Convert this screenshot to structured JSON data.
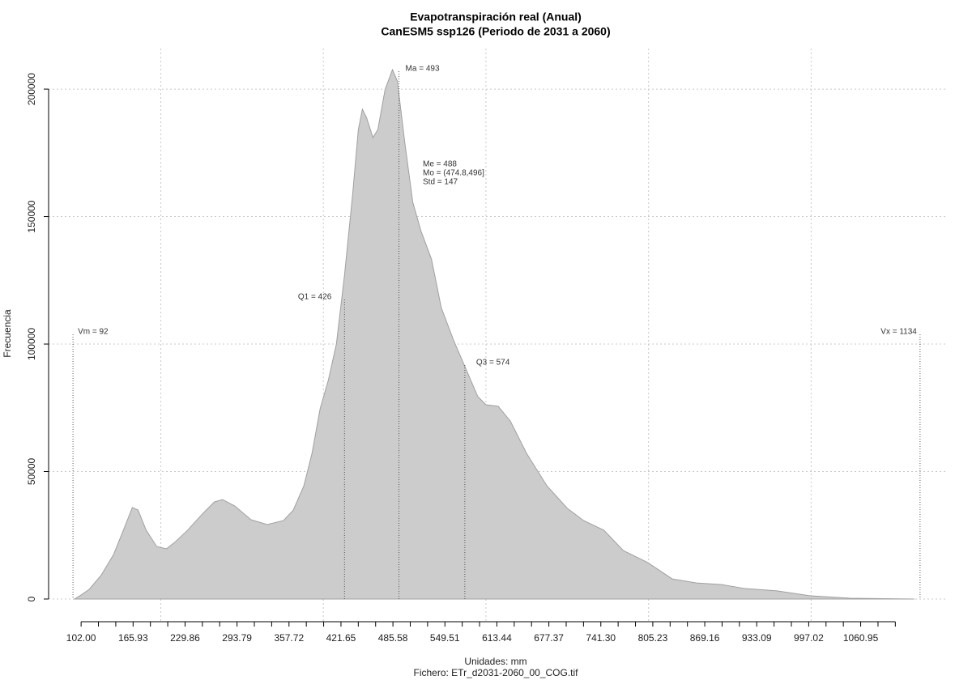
{
  "chart_data": {
    "type": "area",
    "title": "Evapotranspiración real (Anual)",
    "subtitle": "CanESM5 ssp126 (Periodo de 2031 a 2060)",
    "xlabel": "Unidades: mm",
    "footer": "Fichero: ETr_d2031-2060_00_COG.tif",
    "ylabel": "Frecuencia",
    "color": "#cccccc",
    "line_color": "#a0a0a0",
    "grid": true,
    "x": [
      94,
      102,
      112,
      127,
      142,
      154,
      165,
      172,
      182,
      195,
      207,
      217,
      233,
      251,
      266,
      276,
      291,
      311,
      331,
      351,
      363,
      376,
      386,
      396,
      406,
      416,
      426,
      436,
      443,
      448,
      453,
      461,
      467,
      476,
      485,
      491,
      500,
      510,
      520,
      533,
      545,
      560,
      575,
      590,
      600,
      615,
      630,
      650,
      675,
      700,
      720,
      745,
      769,
      799,
      829,
      859,
      889,
      919,
      958,
      998,
      1048,
      1127
    ],
    "values": [
      0,
      1600,
      3800,
      9500,
      17500,
      27000,
      35900,
      34900,
      27000,
      20600,
      19700,
      22200,
      27000,
      33300,
      38100,
      39000,
      36500,
      31100,
      29200,
      30800,
      34900,
      44400,
      57100,
      74600,
      85700,
      100000,
      127000,
      158700,
      184100,
      192100,
      188900,
      181000,
      184100,
      200000,
      207600,
      203200,
      179400,
      155600,
      144400,
      133300,
      114300,
      101600,
      90500,
      79400,
      76200,
      75600,
      69800,
      57100,
      44400,
      35600,
      30800,
      27000,
      19000,
      14300,
      7900,
      6300,
      5700,
      4100,
      3200,
      1300,
      300,
      0
    ],
    "xlim": [
      62,
      1168
    ],
    "ylim": [
      -8900,
      215900
    ],
    "xticks": [
      {
        "value": 102,
        "label": "102.00"
      },
      165.93,
      229.86,
      293.79,
      357.72,
      421.65,
      485.58,
      549.51,
      613.44,
      677.37,
      {
        "value": 741.3,
        "label": "741.30"
      },
      805.23,
      869.16,
      933.09,
      997.02,
      1060.95
    ],
    "yticks": [
      0,
      50000,
      100000,
      150000,
      200000
    ],
    "xgrid": [
      200,
      400,
      600,
      800,
      1000
    ],
    "markers": [
      {
        "label": "Vm = 92",
        "value": 92
      },
      {
        "label": "Q1 = 426",
        "value": 426
      },
      {
        "label": "Ma = 493",
        "value": 493
      },
      {
        "label": "Q3 = 574",
        "value": 574
      },
      {
        "label": "Vx = 1134",
        "value": 1134
      }
    ],
    "stats": [
      "Me = 488",
      "Mo = (474.8,496]",
      "Std = 147"
    ]
  }
}
